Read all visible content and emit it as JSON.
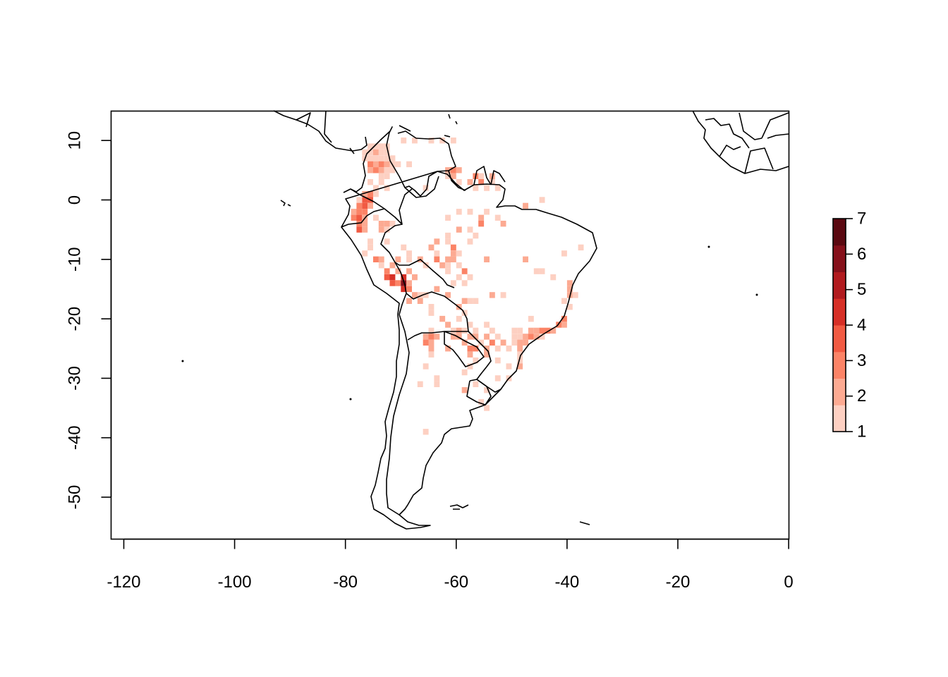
{
  "chart_data": {
    "type": "heatmap",
    "subtype": "raster-map",
    "title": "",
    "xlabel": "",
    "ylabel": "",
    "xlim": [
      -122,
      0
    ],
    "ylim": [
      -57,
      15
    ],
    "x_ticks": [
      -120,
      -100,
      -80,
      -60,
      -40,
      -20,
      0
    ],
    "y_ticks": [
      10,
      0,
      -10,
      -20,
      -30,
      -40,
      -50
    ],
    "x_tick_labels": [
      "-120",
      "-100",
      "-80",
      "-60",
      "-40",
      "-20",
      "0"
    ],
    "y_tick_labels": [
      "10",
      "0",
      "-10",
      "-20",
      "-30",
      "-40",
      "-50"
    ],
    "cell_size_deg": 1,
    "legend": {
      "position": "right",
      "range": [
        1,
        7
      ],
      "ticks": [
        1,
        2,
        3,
        4,
        5,
        6,
        7
      ],
      "tick_labels": [
        "1",
        "2",
        "3",
        "4",
        "5",
        "6",
        "7"
      ],
      "colors": [
        "#fdd0c2",
        "#fcaa92",
        "#fb8366",
        "#f15a42",
        "#d62f26",
        "#b11a1e",
        "#85101a",
        "#5a0810"
      ]
    },
    "cells": [
      [
        -76,
        9,
        1
      ],
      [
        -75,
        9,
        1
      ],
      [
        -74,
        9,
        1
      ],
      [
        -73,
        9,
        1
      ],
      [
        -70,
        10,
        1
      ],
      [
        -68,
        10,
        1
      ],
      [
        -65,
        10,
        1
      ],
      [
        -63,
        10,
        1
      ],
      [
        -61,
        10,
        1
      ],
      [
        -77,
        8,
        1
      ],
      [
        -76,
        8,
        1
      ],
      [
        -75,
        8,
        2
      ],
      [
        -74,
        8,
        1
      ],
      [
        -73,
        8,
        1
      ],
      [
        -77,
        7,
        1
      ],
      [
        -76,
        7,
        1
      ],
      [
        -75,
        7,
        1
      ],
      [
        -74,
        7,
        1
      ],
      [
        -73,
        7,
        1
      ],
      [
        -72,
        7,
        1
      ],
      [
        -71,
        6,
        1
      ],
      [
        -69,
        6,
        1
      ],
      [
        -76,
        6,
        3
      ],
      [
        -75,
        6,
        2
      ],
      [
        -74,
        6,
        3
      ],
      [
        -73,
        6,
        2
      ],
      [
        -72,
        6,
        1
      ],
      [
        -76,
        5,
        2
      ],
      [
        -75,
        5,
        3
      ],
      [
        -74,
        5,
        2
      ],
      [
        -73,
        5,
        1
      ],
      [
        -72,
        5,
        1
      ],
      [
        -62,
        5,
        2
      ],
      [
        -61,
        5,
        3
      ],
      [
        -60,
        5,
        2
      ],
      [
        -74,
        4,
        1
      ],
      [
        -73,
        4,
        1
      ],
      [
        -62,
        4,
        1
      ],
      [
        -61,
        4,
        2
      ],
      [
        -57,
        4,
        3
      ],
      [
        -56,
        4,
        1
      ],
      [
        -54,
        4,
        2
      ],
      [
        -76,
        3,
        1
      ],
      [
        -74,
        3,
        1
      ],
      [
        -60,
        3,
        1
      ],
      [
        -58,
        3,
        2
      ],
      [
        -56,
        3,
        3
      ],
      [
        -54,
        3,
        1
      ],
      [
        -75,
        2,
        1
      ],
      [
        -73,
        2,
        1
      ],
      [
        -66,
        2,
        1
      ],
      [
        -57,
        2,
        1
      ],
      [
        -55,
        2,
        1
      ],
      [
        -53,
        2,
        1
      ],
      [
        -77,
        1,
        2
      ],
      [
        -76,
        1,
        3
      ],
      [
        -75,
        1,
        1
      ],
      [
        -77,
        0,
        4
      ],
      [
        -76,
        0,
        4
      ],
      [
        -78,
        0,
        1
      ],
      [
        -45,
        0,
        1
      ],
      [
        -78,
        -1,
        3
      ],
      [
        -77,
        -1,
        4
      ],
      [
        -76,
        -1,
        2
      ],
      [
        -48,
        -1,
        2
      ],
      [
        -79,
        -2,
        2
      ],
      [
        -78,
        -2,
        3
      ],
      [
        -77,
        -2,
        3
      ],
      [
        -60,
        -2,
        1
      ],
      [
        -58,
        -2,
        1
      ],
      [
        -55,
        -2,
        1
      ],
      [
        -79,
        -3,
        3
      ],
      [
        -78,
        -3,
        4
      ],
      [
        -77,
        -3,
        2
      ],
      [
        -75,
        -3,
        1
      ],
      [
        -62,
        -3,
        1
      ],
      [
        -56,
        -3,
        2
      ],
      [
        -53,
        -3,
        1
      ],
      [
        -78,
        -4,
        3
      ],
      [
        -77,
        -4,
        2
      ],
      [
        -74,
        -4,
        2
      ],
      [
        -73,
        -4,
        2
      ],
      [
        -72,
        -4,
        1
      ],
      [
        -56,
        -4,
        3
      ],
      [
        -52,
        -4,
        2
      ],
      [
        -78,
        -5,
        4
      ],
      [
        -77,
        -5,
        2
      ],
      [
        -74,
        -5,
        2
      ],
      [
        -73,
        -5,
        1
      ],
      [
        -60,
        -5,
        2
      ],
      [
        -58,
        -5,
        1
      ],
      [
        -62,
        -6,
        1
      ],
      [
        -57,
        -6,
        1
      ],
      [
        -76,
        -7,
        1
      ],
      [
        -73,
        -7,
        1
      ],
      [
        -64,
        -7,
        2
      ],
      [
        -62,
        -7,
        1
      ],
      [
        -58,
        -7,
        1
      ],
      [
        -76,
        -8,
        1
      ],
      [
        -70,
        -8,
        1
      ],
      [
        -65,
        -8,
        2
      ],
      [
        -61,
        -8,
        3
      ],
      [
        -38,
        -8,
        1
      ],
      [
        -77,
        -9,
        1
      ],
      [
        -69,
        -9,
        1
      ],
      [
        -64,
        -9,
        1
      ],
      [
        -61,
        -9,
        2
      ],
      [
        -60,
        -9,
        1
      ],
      [
        -41,
        -9,
        1
      ],
      [
        -75,
        -10,
        3
      ],
      [
        -74,
        -10,
        2
      ],
      [
        -71,
        -10,
        2
      ],
      [
        -69,
        -10,
        1
      ],
      [
        -67,
        -10,
        2
      ],
      [
        -64,
        -10,
        3
      ],
      [
        -62,
        -10,
        2
      ],
      [
        -61,
        -10,
        2
      ],
      [
        -55,
        -10,
        2
      ],
      [
        -48,
        -10,
        2
      ],
      [
        -74,
        -11,
        1
      ],
      [
        -72,
        -11,
        2
      ],
      [
        -66,
        -11,
        1
      ],
      [
        -63,
        -11,
        2
      ],
      [
        -62,
        -11,
        1
      ],
      [
        -60,
        -11,
        1
      ],
      [
        -73,
        -12,
        3
      ],
      [
        -71,
        -12,
        2
      ],
      [
        -69,
        -12,
        2
      ],
      [
        -62,
        -12,
        1
      ],
      [
        -59,
        -12,
        3
      ],
      [
        -46,
        -12,
        1
      ],
      [
        -45,
        -12,
        1
      ],
      [
        -73,
        -13,
        4
      ],
      [
        -72,
        -13,
        5
      ],
      [
        -70,
        -13,
        5
      ],
      [
        -68,
        -13,
        2
      ],
      [
        -60,
        -13,
        1
      ],
      [
        -58,
        -13,
        1
      ],
      [
        -43,
        -13,
        1
      ],
      [
        -72,
        -14,
        4
      ],
      [
        -71,
        -14,
        3
      ],
      [
        -70,
        -14,
        7
      ],
      [
        -69,
        -14,
        2
      ],
      [
        -61,
        -14,
        1
      ],
      [
        -59,
        -14,
        1
      ],
      [
        -40,
        -14,
        2
      ],
      [
        -70,
        -15,
        5
      ],
      [
        -69,
        -15,
        3
      ],
      [
        -64,
        -15,
        2
      ],
      [
        -40,
        -15,
        2
      ],
      [
        -68,
        -16,
        2
      ],
      [
        -67,
        -16,
        1
      ],
      [
        -66,
        -16,
        1
      ],
      [
        -62,
        -16,
        2
      ],
      [
        -54,
        -16,
        2
      ],
      [
        -52,
        -16,
        1
      ],
      [
        -40,
        -16,
        2
      ],
      [
        -39,
        -16,
        1
      ],
      [
        -69,
        -17,
        2
      ],
      [
        -67,
        -17,
        2
      ],
      [
        -59,
        -17,
        2
      ],
      [
        -58,
        -17,
        1
      ],
      [
        -57,
        -17,
        1
      ],
      [
        -41,
        -17,
        1
      ],
      [
        -65,
        -18,
        1
      ],
      [
        -60,
        -18,
        2
      ],
      [
        -40,
        -18,
        1
      ],
      [
        -65,
        -19,
        1
      ],
      [
        -59,
        -19,
        1
      ],
      [
        -63,
        -20,
        2
      ],
      [
        -60,
        -20,
        1
      ],
      [
        -47,
        -20,
        1
      ],
      [
        -41,
        -20,
        3
      ],
      [
        -62,
        -21,
        2
      ],
      [
        -58,
        -21,
        1
      ],
      [
        -55,
        -21,
        1
      ],
      [
        -42,
        -21,
        3
      ],
      [
        -41,
        -21,
        2
      ],
      [
        -65,
        -22,
        1
      ],
      [
        -61,
        -22,
        1
      ],
      [
        -60,
        -22,
        2
      ],
      [
        -59,
        -22,
        1
      ],
      [
        -57,
        -22,
        1
      ],
      [
        -54,
        -22,
        1
      ],
      [
        -50,
        -22,
        1
      ],
      [
        -49,
        -22,
        1
      ],
      [
        -47,
        -22,
        2
      ],
      [
        -46,
        -22,
        2
      ],
      [
        -45,
        -22,
        3
      ],
      [
        -44,
        -22,
        3
      ],
      [
        -43,
        -22,
        2
      ],
      [
        -66,
        -23,
        2
      ],
      [
        -65,
        -23,
        3
      ],
      [
        -64,
        -23,
        2
      ],
      [
        -61,
        -23,
        2
      ],
      [
        -60,
        -23,
        2
      ],
      [
        -58,
        -23,
        2
      ],
      [
        -57,
        -23,
        2
      ],
      [
        -55,
        -23,
        2
      ],
      [
        -53,
        -23,
        1
      ],
      [
        -50,
        -23,
        1
      ],
      [
        -49,
        -23,
        1
      ],
      [
        -48,
        -23,
        2
      ],
      [
        -47,
        -23,
        3
      ],
      [
        -46,
        -23,
        2
      ],
      [
        -45,
        -23,
        1
      ],
      [
        -66,
        -24,
        3
      ],
      [
        -65,
        -24,
        2
      ],
      [
        -59,
        -24,
        2
      ],
      [
        -56,
        -24,
        1
      ],
      [
        -54,
        -24,
        3
      ],
      [
        -52,
        -24,
        2
      ],
      [
        -50,
        -24,
        1
      ],
      [
        -49,
        -24,
        2
      ],
      [
        -48,
        -24,
        2
      ],
      [
        -65,
        -25,
        2
      ],
      [
        -62,
        -25,
        2
      ],
      [
        -58,
        -25,
        3
      ],
      [
        -57,
        -25,
        3
      ],
      [
        -55,
        -25,
        2
      ],
      [
        -53,
        -25,
        1
      ],
      [
        -51,
        -25,
        1
      ],
      [
        -49,
        -25,
        2
      ],
      [
        -65,
        -26,
        1
      ],
      [
        -58,
        -26,
        2
      ],
      [
        -55,
        -26,
        2
      ],
      [
        -49,
        -26,
        1
      ],
      [
        -57,
        -27,
        1
      ],
      [
        -53,
        -27,
        1
      ],
      [
        -49,
        -27,
        1
      ],
      [
        -66,
        -28,
        1
      ],
      [
        -58,
        -28,
        1
      ],
      [
        -51,
        -28,
        1
      ],
      [
        -49,
        -28,
        2
      ],
      [
        -59,
        -29,
        1
      ],
      [
        -64,
        -30,
        1
      ],
      [
        -53,
        -30,
        1
      ],
      [
        -51,
        -30,
        1
      ],
      [
        -67,
        -31,
        1
      ],
      [
        -64,
        -31,
        1
      ],
      [
        -57,
        -31,
        1
      ],
      [
        -59,
        -32,
        2
      ],
      [
        -55,
        -32,
        1
      ],
      [
        -56,
        -34,
        1
      ],
      [
        -55,
        -35,
        1
      ],
      [
        -66,
        -39,
        1
      ]
    ]
  }
}
